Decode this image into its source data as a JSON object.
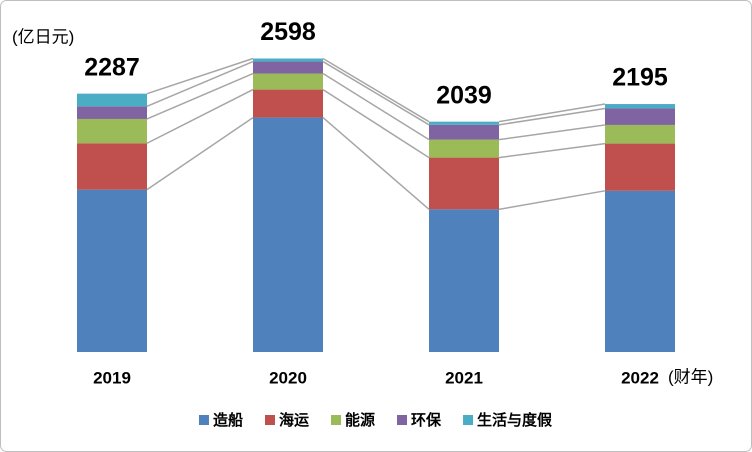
{
  "chart_data": {
    "type": "stacked_bar",
    "unit": "(亿日元)",
    "x_unit": "(财年)",
    "categories": [
      "2019",
      "2020",
      "2021",
      "2022"
    ],
    "totals": [
      2287,
      2598,
      2039,
      2195
    ],
    "series": [
      {
        "name": "造船",
        "color": "#4f81bd",
        "values": [
          1437,
          2075,
          1263,
          1427
        ]
      },
      {
        "name": "海运",
        "color": "#c0504d",
        "values": [
          411,
          248,
          458,
          418
        ]
      },
      {
        "name": "能源",
        "color": "#9bbb59",
        "values": [
          215,
          142,
          159,
          165
        ]
      },
      {
        "name": "环保",
        "color": "#8064a2",
        "values": [
          112,
          106,
          131,
          146
        ]
      },
      {
        "name": "生活与度假",
        "color": "#4bacc6",
        "values": [
          112,
          27,
          28,
          39
        ]
      }
    ],
    "ylim": [
      0,
      2700
    ],
    "connector_lines": true,
    "legend": "bottom"
  }
}
